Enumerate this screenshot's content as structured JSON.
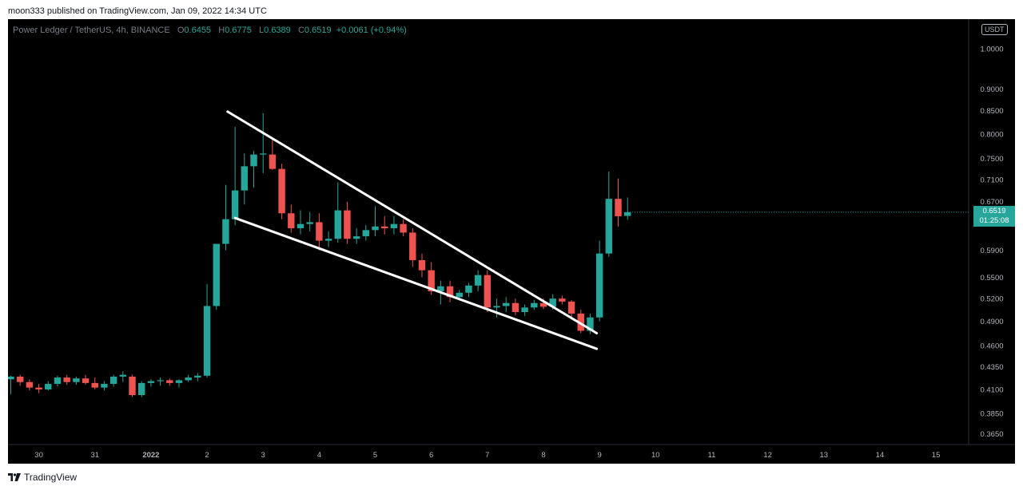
{
  "header": {
    "publisher": "moon333 published on TradingView.com, Jan 09, 2022 14:34 UTC"
  },
  "legend": {
    "symbol": "Power Ledger / TetherUS, 4h, BINANCE",
    "o_key": "O",
    "o_val": "0.6455",
    "h_key": "H",
    "h_val": "0.6775",
    "l_key": "L",
    "l_val": "0.6389",
    "c_key": "C",
    "c_val": "0.6519",
    "change": "+0.0061 (+0.94%)"
  },
  "currency": "USDT",
  "last_price": {
    "value": "0.6519",
    "countdown": "01:25:08"
  },
  "footer": {
    "brand": "TradingView"
  },
  "colors": {
    "up": "#26a69a",
    "down": "#ef5350",
    "background": "#000000",
    "axis_text": "#b2b5be",
    "trendline": "#ffffff"
  },
  "chart_data": {
    "type": "candlestick",
    "scale": "log",
    "ylim": [
      0.355,
      1.08
    ],
    "y_ticks": [
      "1.0000",
      "0.9000",
      "0.8500",
      "0.8000",
      "0.7500",
      "0.7100",
      "0.6700",
      "0.5900",
      "0.5500",
      "0.5200",
      "0.4900",
      "0.4600",
      "0.4350",
      "0.4100",
      "0.3850",
      "0.3650"
    ],
    "x_ticks": [
      {
        "label": "30",
        "t": 0
      },
      {
        "label": "31",
        "t": 6
      },
      {
        "label": "2022",
        "t": 12
      },
      {
        "label": "2",
        "t": 18
      },
      {
        "label": "3",
        "t": 24
      },
      {
        "label": "4",
        "t": 30
      },
      {
        "label": "5",
        "t": 36
      },
      {
        "label": "6",
        "t": 42
      },
      {
        "label": "7",
        "t": 48
      },
      {
        "label": "8",
        "t": 54
      },
      {
        "label": "9",
        "t": 60
      },
      {
        "label": "10",
        "t": 66
      },
      {
        "label": "11",
        "t": 72
      },
      {
        "label": "12",
        "t": 78
      },
      {
        "label": "13",
        "t": 84
      },
      {
        "label": "14",
        "t": 90
      },
      {
        "label": "15",
        "t": 96
      }
    ],
    "x_range": [
      -3.3,
      99.5
    ],
    "candles": [
      {
        "t": -3,
        "o": 0.421,
        "h": 0.425,
        "l": 0.405,
        "c": 0.424
      },
      {
        "t": -2,
        "o": 0.424,
        "h": 0.426,
        "l": 0.414,
        "c": 0.418
      },
      {
        "t": -1,
        "o": 0.418,
        "h": 0.421,
        "l": 0.409,
        "c": 0.412
      },
      {
        "t": 0,
        "o": 0.412,
        "h": 0.416,
        "l": 0.406,
        "c": 0.41
      },
      {
        "t": 1,
        "o": 0.41,
        "h": 0.419,
        "l": 0.409,
        "c": 0.416
      },
      {
        "t": 2,
        "o": 0.416,
        "h": 0.425,
        "l": 0.413,
        "c": 0.423
      },
      {
        "t": 3,
        "o": 0.423,
        "h": 0.426,
        "l": 0.415,
        "c": 0.418
      },
      {
        "t": 4,
        "o": 0.418,
        "h": 0.424,
        "l": 0.415,
        "c": 0.422
      },
      {
        "t": 5,
        "o": 0.422,
        "h": 0.426,
        "l": 0.415,
        "c": 0.417
      },
      {
        "t": 6,
        "o": 0.417,
        "h": 0.423,
        "l": 0.41,
        "c": 0.412
      },
      {
        "t": 7,
        "o": 0.412,
        "h": 0.419,
        "l": 0.409,
        "c": 0.416
      },
      {
        "t": 8,
        "o": 0.416,
        "h": 0.426,
        "l": 0.413,
        "c": 0.424
      },
      {
        "t": 9,
        "o": 0.424,
        "h": 0.43,
        "l": 0.418,
        "c": 0.426
      },
      {
        "t": 10,
        "o": 0.424,
        "h": 0.426,
        "l": 0.402,
        "c": 0.404
      },
      {
        "t": 11,
        "o": 0.404,
        "h": 0.419,
        "l": 0.402,
        "c": 0.417
      },
      {
        "t": 12,
        "o": 0.417,
        "h": 0.421,
        "l": 0.413,
        "c": 0.419
      },
      {
        "t": 13,
        "o": 0.419,
        "h": 0.423,
        "l": 0.414,
        "c": 0.42
      },
      {
        "t": 14,
        "o": 0.42,
        "h": 0.422,
        "l": 0.414,
        "c": 0.417
      },
      {
        "t": 15,
        "o": 0.417,
        "h": 0.421,
        "l": 0.412,
        "c": 0.42
      },
      {
        "t": 16,
        "o": 0.42,
        "h": 0.426,
        "l": 0.418,
        "c": 0.423
      },
      {
        "t": 17,
        "o": 0.423,
        "h": 0.428,
        "l": 0.419,
        "c": 0.425
      },
      {
        "t": 18,
        "o": 0.425,
        "h": 0.54,
        "l": 0.423,
        "c": 0.51
      },
      {
        "t": 19,
        "o": 0.51,
        "h": 0.6,
        "l": 0.505,
        "c": 0.6
      },
      {
        "t": 20,
        "o": 0.6,
        "h": 0.7,
        "l": 0.59,
        "c": 0.64
      },
      {
        "t": 21,
        "o": 0.64,
        "h": 0.815,
        "l": 0.63,
        "c": 0.69
      },
      {
        "t": 22,
        "o": 0.69,
        "h": 0.76,
        "l": 0.665,
        "c": 0.735
      },
      {
        "t": 23,
        "o": 0.735,
        "h": 0.765,
        "l": 0.695,
        "c": 0.758
      },
      {
        "t": 24,
        "o": 0.758,
        "h": 0.845,
        "l": 0.722,
        "c": 0.76
      },
      {
        "t": 25,
        "o": 0.758,
        "h": 0.79,
        "l": 0.728,
        "c": 0.73
      },
      {
        "t": 26,
        "o": 0.73,
        "h": 0.74,
        "l": 0.64,
        "c": 0.65
      },
      {
        "t": 27,
        "o": 0.65,
        "h": 0.665,
        "l": 0.618,
        "c": 0.625
      },
      {
        "t": 28,
        "o": 0.625,
        "h": 0.655,
        "l": 0.615,
        "c": 0.632
      },
      {
        "t": 29,
        "o": 0.632,
        "h": 0.652,
        "l": 0.62,
        "c": 0.635
      },
      {
        "t": 30,
        "o": 0.635,
        "h": 0.65,
        "l": 0.59,
        "c": 0.605
      },
      {
        "t": 31,
        "o": 0.605,
        "h": 0.62,
        "l": 0.595,
        "c": 0.608
      },
      {
        "t": 32,
        "o": 0.608,
        "h": 0.705,
        "l": 0.602,
        "c": 0.655
      },
      {
        "t": 33,
        "o": 0.655,
        "h": 0.67,
        "l": 0.6,
        "c": 0.608
      },
      {
        "t": 34,
        "o": 0.608,
        "h": 0.625,
        "l": 0.6,
        "c": 0.612
      },
      {
        "t": 35,
        "o": 0.612,
        "h": 0.63,
        "l": 0.605,
        "c": 0.622
      },
      {
        "t": 36,
        "o": 0.622,
        "h": 0.662,
        "l": 0.612,
        "c": 0.628
      },
      {
        "t": 37,
        "o": 0.628,
        "h": 0.645,
        "l": 0.615,
        "c": 0.625
      },
      {
        "t": 38,
        "o": 0.625,
        "h": 0.645,
        "l": 0.615,
        "c": 0.632
      },
      {
        "t": 39,
        "o": 0.632,
        "h": 0.64,
        "l": 0.612,
        "c": 0.618
      },
      {
        "t": 40,
        "o": 0.618,
        "h": 0.625,
        "l": 0.565,
        "c": 0.575
      },
      {
        "t": 41,
        "o": 0.575,
        "h": 0.585,
        "l": 0.55,
        "c": 0.56
      },
      {
        "t": 42,
        "o": 0.56,
        "h": 0.572,
        "l": 0.525,
        "c": 0.53
      },
      {
        "t": 43,
        "o": 0.53,
        "h": 0.545,
        "l": 0.512,
        "c": 0.537
      },
      {
        "t": 44,
        "o": 0.537,
        "h": 0.545,
        "l": 0.515,
        "c": 0.522
      },
      {
        "t": 45,
        "o": 0.522,
        "h": 0.532,
        "l": 0.518,
        "c": 0.528
      },
      {
        "t": 46,
        "o": 0.528,
        "h": 0.542,
        "l": 0.522,
        "c": 0.538
      },
      {
        "t": 47,
        "o": 0.538,
        "h": 0.56,
        "l": 0.53,
        "c": 0.553
      },
      {
        "t": 48,
        "o": 0.553,
        "h": 0.56,
        "l": 0.502,
        "c": 0.508
      },
      {
        "t": 49,
        "o": 0.508,
        "h": 0.52,
        "l": 0.495,
        "c": 0.51
      },
      {
        "t": 50,
        "o": 0.51,
        "h": 0.522,
        "l": 0.502,
        "c": 0.514
      },
      {
        "t": 51,
        "o": 0.514,
        "h": 0.52,
        "l": 0.498,
        "c": 0.502
      },
      {
        "t": 52,
        "o": 0.502,
        "h": 0.512,
        "l": 0.497,
        "c": 0.508
      },
      {
        "t": 53,
        "o": 0.508,
        "h": 0.518,
        "l": 0.505,
        "c": 0.514
      },
      {
        "t": 54,
        "o": 0.514,
        "h": 0.52,
        "l": 0.506,
        "c": 0.509
      },
      {
        "t": 55,
        "o": 0.509,
        "h": 0.526,
        "l": 0.505,
        "c": 0.52
      },
      {
        "t": 56,
        "o": 0.52,
        "h": 0.524,
        "l": 0.512,
        "c": 0.516
      },
      {
        "t": 57,
        "o": 0.516,
        "h": 0.518,
        "l": 0.495,
        "c": 0.5
      },
      {
        "t": 58,
        "o": 0.5,
        "h": 0.505,
        "l": 0.475,
        "c": 0.478
      },
      {
        "t": 59,
        "o": 0.478,
        "h": 0.5,
        "l": 0.474,
        "c": 0.495
      },
      {
        "t": 60,
        "o": 0.495,
        "h": 0.605,
        "l": 0.49,
        "c": 0.585
      },
      {
        "t": 61,
        "o": 0.585,
        "h": 0.725,
        "l": 0.58,
        "c": 0.675
      },
      {
        "t": 62,
        "o": 0.675,
        "h": 0.712,
        "l": 0.628,
        "c": 0.645
      },
      {
        "t": 63,
        "o": 0.6455,
        "h": 0.6775,
        "l": 0.6389,
        "c": 0.6519
      }
    ],
    "trendlines": [
      {
        "t1": 20.2,
        "p1": 0.848,
        "t2": 59.7,
        "p2": 0.475
      },
      {
        "t1": 21,
        "p1": 0.642,
        "t2": 59.7,
        "p2": 0.456
      }
    ]
  }
}
